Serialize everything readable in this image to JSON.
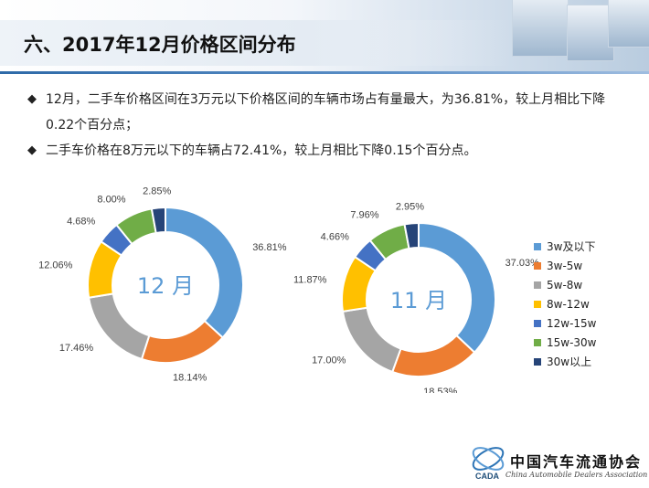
{
  "title": "六、2017年12月价格区间分布",
  "bullets": [
    "12月，二手车价格区间在3万元以下价格区间的车辆市场占有量最大，为36.81%，较上月相比下降0.22个百分点；",
    "二手车价格在8万元以下的车辆占72.41%，较上月相比下降0.15个百分点。"
  ],
  "bullet_icon": "diamond-bullet-icon",
  "logo": {
    "name": "中国汽车流通协会",
    "sub": "China Automobile Dealers Association",
    "mark": "CADA"
  },
  "chart_data": [
    {
      "type": "donut",
      "center_label": "12 月",
      "categories": [
        "3w及以下",
        "3w-5w",
        "5w-8w",
        "8w-12w",
        "12w-15w",
        "15w-30w",
        "30w以上"
      ],
      "values": [
        36.81,
        18.14,
        17.46,
        12.06,
        4.68,
        8.0,
        2.85
      ],
      "labels": [
        "36.81%",
        "18.14%",
        "17.46%",
        "12.06%",
        "4.68%",
        "8.00%",
        "2.85%"
      ]
    },
    {
      "type": "donut",
      "center_label": "11 月",
      "categories": [
        "3w及以下",
        "3w-5w",
        "5w-8w",
        "8w-12w",
        "12w-15w",
        "15w-30w",
        "30w以上"
      ],
      "values": [
        37.03,
        18.53,
        17.0,
        11.87,
        4.66,
        7.96,
        2.95
      ],
      "labels": [
        "37.03%",
        "18.53%",
        "17.00%",
        "11.87%",
        "4.66%",
        "7.96%",
        "2.95%"
      ]
    }
  ],
  "legend": [
    "3w及以下",
    "3w-5w",
    "5w-8w",
    "8w-12w",
    "12w-15w",
    "15w-30w",
    "30w以上"
  ],
  "colors": [
    "#5b9bd5",
    "#ed7d31",
    "#a5a5a5",
    "#ffc000",
    "#4472c4",
    "#70ad47",
    "#264478"
  ],
  "center_label_color": "#5b9bd5"
}
